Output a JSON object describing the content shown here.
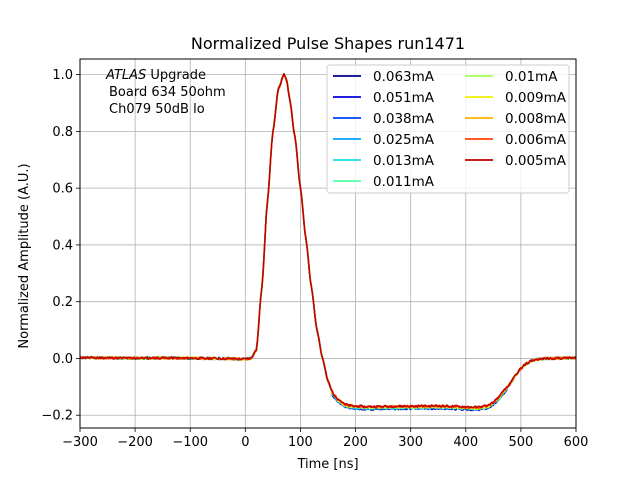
{
  "chart_data": {
    "type": "line",
    "title": "Normalized Pulse Shapes run1471",
    "xlabel": "Time [ns]",
    "ylabel": "Normalized Amplitude (A.U.)",
    "xlim": [
      -300,
      600
    ],
    "ylim": [
      -0.245,
      1.055
    ],
    "xticks": [
      -300,
      -200,
      -100,
      0,
      100,
      200,
      300,
      400,
      500,
      600
    ],
    "xtick_labels": [
      "−300",
      "−200",
      "−100",
      "0",
      "100",
      "200",
      "300",
      "400",
      "500",
      "600"
    ],
    "yticks": [
      -0.2,
      0.0,
      0.2,
      0.4,
      0.6,
      0.8,
      1.0
    ],
    "ytick_labels": [
      "−0.2",
      "0.0",
      "0.2",
      "0.4",
      "0.6",
      "0.8",
      "1.0"
    ],
    "grid": true,
    "legend_position": "top-right",
    "legend_columns": 2,
    "annotation": {
      "atlas": "ATLAS",
      "line1_rest": " Upgrade",
      "line2": "Board 634 50ohm",
      "line3": "Ch079 50dB  lo"
    },
    "pulse_shape": {
      "x": [
        -300,
        -250,
        -200,
        -150,
        -100,
        -50,
        0,
        10,
        20,
        30,
        40,
        50,
        60,
        70,
        75,
        80,
        90,
        100,
        110,
        120,
        130,
        140,
        150,
        160,
        170,
        180,
        190,
        200,
        220,
        250,
        300,
        350,
        400,
        420,
        440,
        450,
        460,
        470,
        480,
        490,
        500,
        510,
        520,
        530,
        550,
        600
      ],
      "y": [
        0.003,
        0.002,
        0.001,
        0.002,
        0.001,
        0.0,
        -0.002,
        0.0,
        0.03,
        0.25,
        0.55,
        0.8,
        0.95,
        1.0,
        0.98,
        0.92,
        0.78,
        0.6,
        0.42,
        0.25,
        0.1,
        0.0,
        -0.08,
        -0.13,
        -0.15,
        -0.165,
        -0.17,
        -0.172,
        -0.174,
        -0.173,
        -0.172,
        -0.171,
        -0.174,
        -0.176,
        -0.17,
        -0.158,
        -0.14,
        -0.115,
        -0.09,
        -0.06,
        -0.035,
        -0.018,
        -0.008,
        -0.003,
        0.0,
        0.002
      ]
    },
    "series": [
      {
        "name": "0.063mA",
        "color": "#00008f"
      },
      {
        "name": "0.051mA",
        "color": "#0000d9"
      },
      {
        "name": "0.038mA",
        "color": "#0040ff"
      },
      {
        "name": "0.025mA",
        "color": "#00a0ff"
      },
      {
        "name": "0.013mA",
        "color": "#10e0e0"
      },
      {
        "name": "0.011mA",
        "color": "#50ffa8"
      },
      {
        "name": "0.01mA",
        "color": "#a8ff50"
      },
      {
        "name": "0.009mA",
        "color": "#f0f000"
      },
      {
        "name": "0.008mA",
        "color": "#ffb000"
      },
      {
        "name": "0.006mA",
        "color": "#ff4000"
      },
      {
        "name": "0.005mA",
        "color": "#c00000"
      }
    ]
  }
}
